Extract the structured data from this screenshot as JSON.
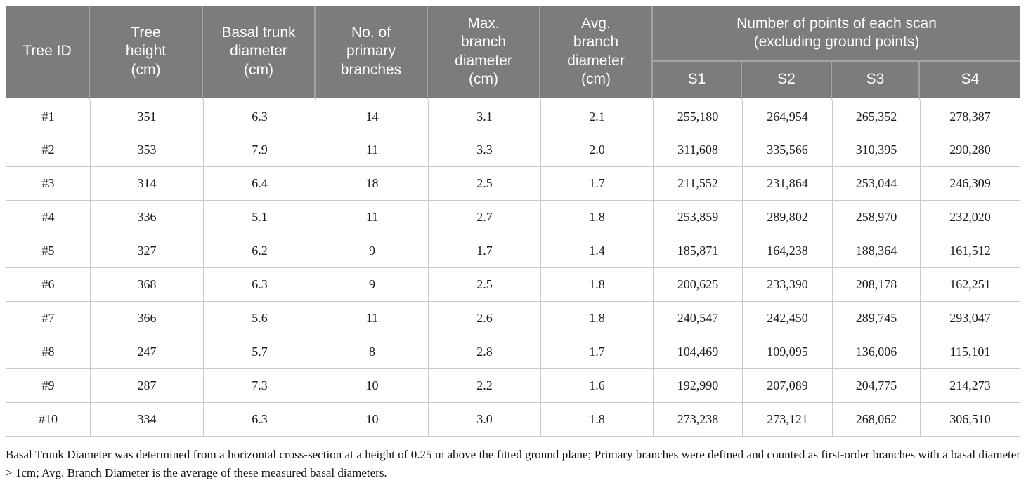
{
  "colors": {
    "header_background": "#7c7c7c",
    "header_divider": "#a3a3a3",
    "header_text": "#ffffff",
    "cell_border": "#c9c9c9",
    "body_text": "#1c1c1c"
  },
  "table": {
    "column_ids": [
      "tree_id",
      "tree_height_cm",
      "basal_trunk_diameter_cm",
      "primary_branches",
      "max_branch_diameter_cm",
      "avg_branch_diameter_cm",
      "s1",
      "s2",
      "s3",
      "s4"
    ],
    "headers": [
      "Tree ID",
      "Tree\nheight\n(cm)",
      "Basal trunk\ndiameter\n(cm)",
      "No. of\nprimary\nbranches",
      "Max.\nbranch\ndiameter\n(cm)",
      "Avg.\nbranch\ndiameter\n(cm)"
    ],
    "scan_group_label": "Number of points of each scan\n(excluding ground points)",
    "scan_columns": [
      "S1",
      "S2",
      "S3",
      "S4"
    ],
    "rows": [
      [
        "#1",
        "351",
        "6.3",
        "14",
        "3.1",
        "2.1",
        "255,180",
        "264,954",
        "265,352",
        "278,387"
      ],
      [
        "#2",
        "353",
        "7.9",
        "11",
        "3.3",
        "2.0",
        "311,608",
        "335,566",
        "310,395",
        "290,280"
      ],
      [
        "#3",
        "314",
        "6.4",
        "18",
        "2.5",
        "1.7",
        "211,552",
        "231,864",
        "253,044",
        "246,309"
      ],
      [
        "#4",
        "336",
        "5.1",
        "11",
        "2.7",
        "1.8",
        "253,859",
        "289,802",
        "258,970",
        "232,020"
      ],
      [
        "#5",
        "327",
        "6.2",
        "9",
        "1.7",
        "1.4",
        "185,871",
        "164,238",
        "188,364",
        "161,512"
      ],
      [
        "#6",
        "368",
        "6.3",
        "9",
        "2.5",
        "1.8",
        "200,625",
        "233,390",
        "208,178",
        "162,251"
      ],
      [
        "#7",
        "366",
        "5.6",
        "11",
        "2.6",
        "1.8",
        "240,547",
        "242,450",
        "289,745",
        "293,047"
      ],
      [
        "#8",
        "247",
        "5.7",
        "8",
        "2.8",
        "1.7",
        "104,469",
        "109,095",
        "136,006",
        "115,101"
      ],
      [
        "#9",
        "287",
        "7.3",
        "10",
        "2.2",
        "1.6",
        "192,990",
        "207,089",
        "204,775",
        "214,273"
      ],
      [
        "#10",
        "334",
        "6.3",
        "10",
        "3.0",
        "1.8",
        "273,238",
        "273,121",
        "268,062",
        "306,510"
      ]
    ]
  },
  "footnote": "Basal Trunk Diameter was determined from a horizontal cross-section at a height of 0.25 m above the fitted ground plane; Primary branches were defined and counted as first-order branches with a basal diameter > 1cm; Avg. Branch Diameter is the average of these measured basal diameters."
}
